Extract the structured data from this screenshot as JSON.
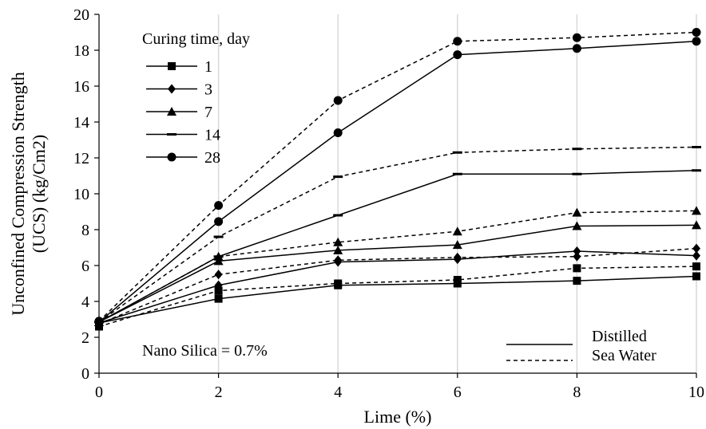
{
  "chart_data": {
    "type": "line",
    "title": "",
    "xlabel": "Lime (%)",
    "ylabel_line1": "Unconfined Compression Strength",
    "ylabel_line2": "(UCS) (kg/Cm2)",
    "xlim": [
      0,
      10
    ],
    "ylim": [
      0,
      20
    ],
    "xticks": [
      0,
      2,
      4,
      6,
      8,
      10
    ],
    "yticks": [
      0,
      2,
      4,
      6,
      8,
      10,
      12,
      14,
      16,
      18,
      20
    ],
    "grid": "vertical",
    "x": [
      0,
      2,
      4,
      6,
      8,
      10
    ],
    "legend_title": "Curing time, day",
    "legend_placement": "top-left",
    "style_legend": [
      {
        "label": "Distilled",
        "dash": "solid"
      },
      {
        "label": "Sea Water",
        "dash": "dashed"
      }
    ],
    "annotation": "Nano Silica = 0.7%",
    "series": [
      {
        "name": "1",
        "marker": "square",
        "condition": "Distilled",
        "dash": "solid",
        "values": [
          2.8,
          4.15,
          4.9,
          5.0,
          5.15,
          5.4
        ]
      },
      {
        "name": "1",
        "marker": "square",
        "condition": "Sea Water",
        "dash": "dashed",
        "values": [
          2.6,
          4.6,
          5.0,
          5.2,
          5.85,
          5.95
        ]
      },
      {
        "name": "3",
        "marker": "diamond",
        "condition": "Distilled",
        "dash": "solid",
        "values": [
          2.8,
          4.9,
          6.2,
          6.35,
          6.8,
          6.55
        ]
      },
      {
        "name": "3",
        "marker": "diamond",
        "condition": "Sea Water",
        "dash": "dashed",
        "values": [
          2.75,
          5.5,
          6.3,
          6.45,
          6.5,
          6.95
        ]
      },
      {
        "name": "7",
        "marker": "triangle",
        "condition": "Distilled",
        "dash": "solid",
        "values": [
          2.85,
          6.25,
          6.85,
          7.15,
          8.2,
          8.25
        ]
      },
      {
        "name": "7",
        "marker": "triangle",
        "condition": "Sea Water",
        "dash": "dashed",
        "values": [
          2.85,
          6.5,
          7.3,
          7.9,
          8.95,
          9.05
        ]
      },
      {
        "name": "14",
        "marker": "dash",
        "condition": "Distilled",
        "dash": "solid",
        "values": [
          2.85,
          6.5,
          8.8,
          11.1,
          11.1,
          11.3
        ]
      },
      {
        "name": "14",
        "marker": "dash",
        "condition": "Sea Water",
        "dash": "dashed",
        "values": [
          2.85,
          7.6,
          10.95,
          12.3,
          12.5,
          12.6
        ]
      },
      {
        "name": "28",
        "marker": "circle",
        "condition": "Distilled",
        "dash": "solid",
        "values": [
          2.85,
          8.45,
          13.4,
          17.75,
          18.1,
          18.5
        ]
      },
      {
        "name": "28",
        "marker": "circle",
        "condition": "Sea Water",
        "dash": "dashed",
        "values": [
          2.9,
          9.35,
          15.2,
          18.5,
          18.7,
          19.0
        ]
      }
    ],
    "legend_entries": [
      {
        "label": "1",
        "marker": "square"
      },
      {
        "label": "3",
        "marker": "diamond"
      },
      {
        "label": "7",
        "marker": "triangle"
      },
      {
        "label": "14",
        "marker": "dash"
      },
      {
        "label": "28",
        "marker": "circle"
      }
    ]
  }
}
